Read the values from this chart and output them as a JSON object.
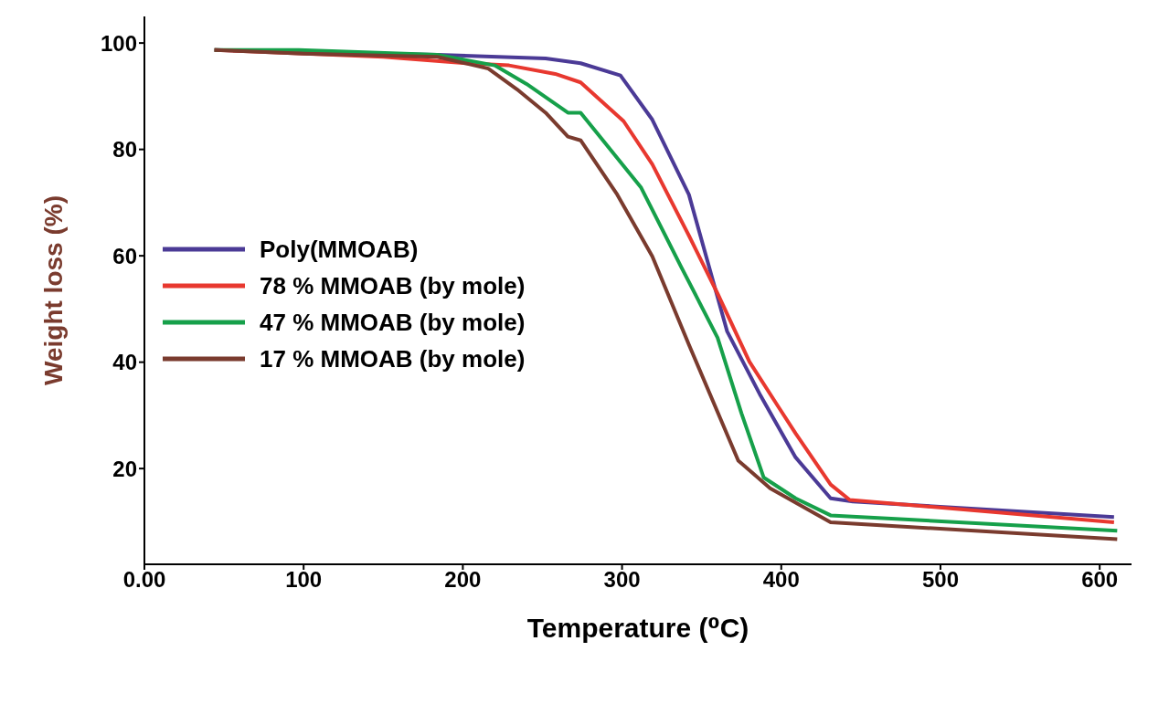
{
  "chart_data": {
    "type": "line",
    "xlabel": "Temperature (⁰C)",
    "ylabel": "Weight loss (%)",
    "xlim": [
      0,
      620
    ],
    "ylim": [
      2,
      105
    ],
    "xticks": [
      {
        "value": 0,
        "label": "0.00"
      },
      100,
      200,
      300,
      400,
      500,
      600
    ],
    "yticks": [
      20,
      40,
      60,
      80,
      100
    ],
    "grid": false,
    "legend": "left",
    "marker": "none",
    "line_style": "solid",
    "series": [
      {
        "name": "Poly(MMOAB)",
        "color": "#4b3a96",
        "x": [
          44,
          100,
          184,
          252,
          274,
          299,
          319,
          342,
          360,
          366,
          387,
          409,
          431,
          445,
          609
        ],
        "values": [
          98.7,
          98.2,
          97.8,
          97.1,
          96.2,
          93.9,
          85.6,
          71.5,
          52.2,
          45.8,
          33.7,
          22.1,
          14.4,
          13.8,
          10.9
        ]
      },
      {
        "name": "78 % MMOAB (by mole)",
        "color": "#e8382f",
        "x": [
          44,
          150,
          202,
          229,
          258,
          274,
          301,
          319,
          342,
          360,
          380,
          398,
          409,
          431,
          443,
          609
        ],
        "values": [
          98.7,
          97.4,
          96.2,
          95.8,
          94.2,
          92.6,
          85.3,
          77.2,
          63.8,
          52.9,
          40.1,
          31.7,
          26.6,
          17.0,
          14.1,
          9.9
        ]
      },
      {
        "name": "47 % MMOAB (by mole)",
        "color": "#16a04a",
        "x": [
          44,
          97,
          184,
          220,
          240,
          266,
          274,
          312,
          337,
          360,
          375,
          389,
          409,
          431,
          611
        ],
        "values": [
          98.7,
          98.7,
          97.8,
          95.8,
          92.3,
          86.9,
          86.9,
          72.8,
          58.0,
          44.6,
          30.4,
          18.3,
          14.4,
          11.2,
          8.3
        ]
      },
      {
        "name": "17 % MMOAB (by mole)",
        "color": "#7a3b2e",
        "x": [
          44,
          100,
          184,
          216,
          234,
          252,
          266,
          274,
          297,
          319,
          342,
          373,
          393,
          431,
          611
        ],
        "values": [
          98.7,
          98.0,
          97.4,
          95.2,
          91.3,
          86.9,
          82.4,
          81.7,
          71.5,
          59.9,
          43.3,
          21.5,
          16.3,
          9.9,
          6.7
        ]
      }
    ]
  }
}
